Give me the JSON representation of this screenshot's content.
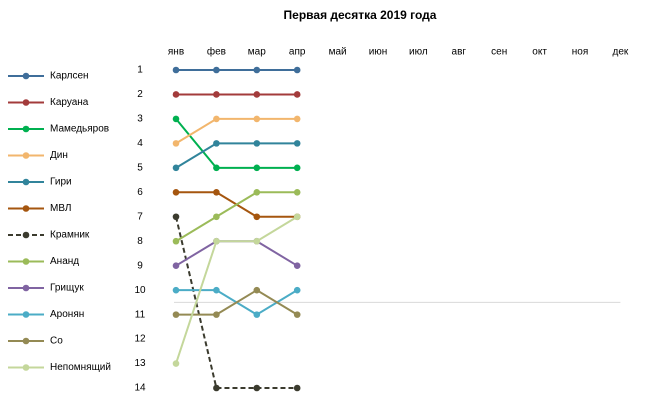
{
  "chart_data": {
    "type": "line",
    "title": "Первая десятка 2019  года",
    "categories": [
      "янв",
      "фев",
      "мар",
      "апр",
      "май",
      "июн",
      "июл",
      "авг",
      "сен",
      "окт",
      "ноя",
      "дек"
    ],
    "ylim": [
      1,
      14
    ],
    "yticks": [
      1,
      2,
      3,
      4,
      5,
      6,
      7,
      8,
      9,
      10,
      11,
      12,
      13,
      14
    ],
    "reversed": true,
    "reference_line": 10.5,
    "legend": "left",
    "series": [
      {
        "name": "Карлсен",
        "color": "#3f6e9a",
        "values": [
          1,
          1,
          1,
          1,
          null,
          null,
          null,
          null,
          null,
          null,
          null,
          null
        ]
      },
      {
        "name": "Каруана",
        "color": "#a33b3b",
        "values": [
          2,
          2,
          2,
          2,
          null,
          null,
          null,
          null,
          null,
          null,
          null,
          null
        ]
      },
      {
        "name": "Мамедьяров",
        "color": "#00b050",
        "values": [
          3,
          5,
          5,
          5,
          null,
          null,
          null,
          null,
          null,
          null,
          null,
          null
        ]
      },
      {
        "name": "Дин",
        "color": "#f2b66d",
        "values": [
          4,
          3,
          3,
          3,
          null,
          null,
          null,
          null,
          null,
          null,
          null,
          null
        ]
      },
      {
        "name": "Гири",
        "color": "#31849b",
        "values": [
          5,
          4,
          4,
          4,
          null,
          null,
          null,
          null,
          null,
          null,
          null,
          null
        ]
      },
      {
        "name": "МВЛ",
        "color": "#a5560f",
        "values": [
          6,
          6,
          7,
          7,
          null,
          null,
          null,
          null,
          null,
          null,
          null,
          null
        ]
      },
      {
        "name": "Крамник",
        "color": "#3b3b2e",
        "dashed": true,
        "values": [
          7,
          14,
          14,
          14,
          null,
          null,
          null,
          null,
          null,
          null,
          null,
          null
        ]
      },
      {
        "name": "Ананд",
        "color": "#9bbb59",
        "values": [
          8,
          7,
          6,
          6,
          null,
          null,
          null,
          null,
          null,
          null,
          null,
          null
        ]
      },
      {
        "name": "Грищук",
        "color": "#8064a2",
        "values": [
          9,
          8,
          8,
          9,
          null,
          null,
          null,
          null,
          null,
          null,
          null,
          null
        ]
      },
      {
        "name": "Аронян",
        "color": "#4bacc6",
        "values": [
          10,
          10,
          11,
          10,
          null,
          null,
          null,
          null,
          null,
          null,
          null,
          null
        ]
      },
      {
        "name": "Со",
        "color": "#948a54",
        "values": [
          11,
          11,
          10,
          11,
          null,
          null,
          null,
          null,
          null,
          null,
          null,
          null
        ]
      },
      {
        "name": "Непомнящий",
        "color": "#c4d79b",
        "values": [
          13,
          8,
          8,
          7,
          null,
          null,
          null,
          null,
          null,
          null,
          null,
          null
        ]
      }
    ]
  }
}
